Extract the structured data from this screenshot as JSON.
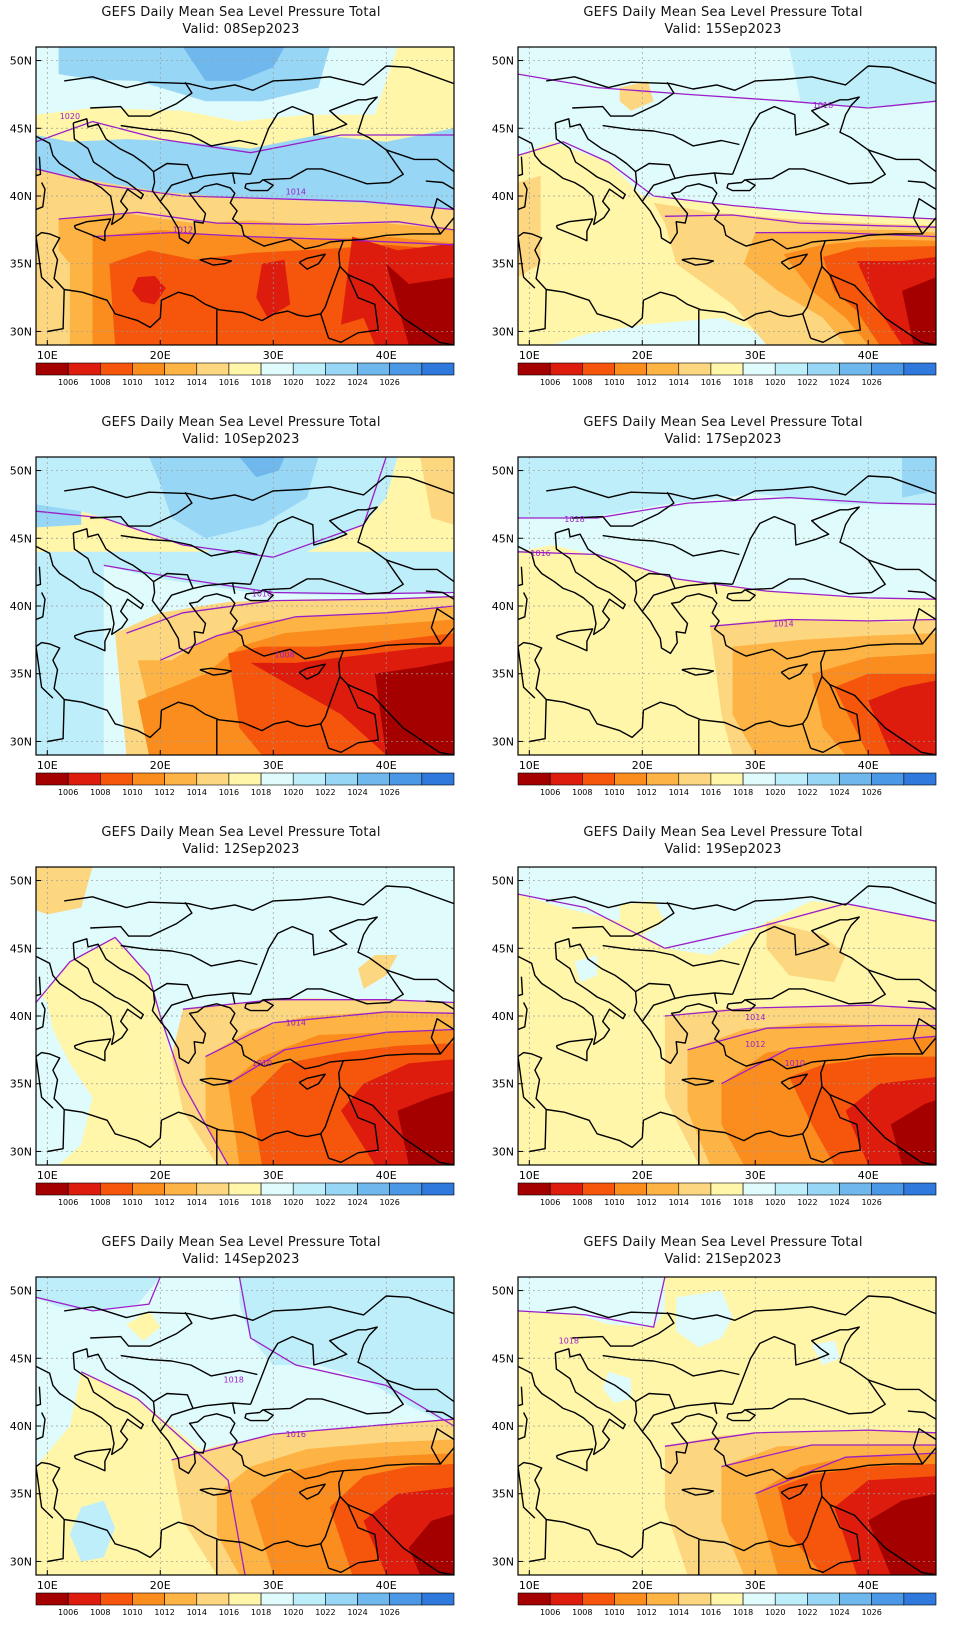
{
  "panel_title": "GEFS Daily Mean Sea Level Pressure Total",
  "valid_prefix": "Valid: ",
  "lat_labels": [
    "50N",
    "45N",
    "40N",
    "35N",
    "30N"
  ],
  "lon_labels": [
    "10E",
    "20E",
    "30E",
    "40E"
  ],
  "colorbar": {
    "labels": [
      "1006",
      "1008",
      "1010",
      "1012",
      "1014",
      "1016",
      "1018",
      "1020",
      "1022",
      "1024",
      "1026"
    ],
    "colors": [
      "#a50000",
      "#dd1c0e",
      "#f5560b",
      "#fb8c1e",
      "#fdb445",
      "#fdd680",
      "#fff6aa",
      "#e0fbfb",
      "#bfeefb",
      "#98d6f6",
      "#6fb8ee",
      "#4a98e6",
      "#2f78dc"
    ]
  },
  "panels": [
    {
      "id": "p1",
      "valid": "08Sep2023",
      "base": "#98d6f6",
      "labels": [
        {
          "text": "1020",
          "lon": 12,
          "lat": 45.7
        },
        {
          "text": "1014",
          "lon": 32,
          "lat": 40.1
        },
        {
          "text": "1012",
          "lon": 22,
          "lat": 37.3
        }
      ]
    },
    {
      "id": "p2",
      "valid": "15Sep2023",
      "base": "#e0fbfb",
      "labels": [
        {
          "text": "1018",
          "lon": 36,
          "lat": 46.5
        }
      ]
    },
    {
      "id": "p3",
      "valid": "10Sep2023",
      "base": "#bfeefb",
      "labels": [
        {
          "text": "1016",
          "lon": 29,
          "lat": 40.7
        },
        {
          "text": "1008",
          "lon": 31,
          "lat": 36.2
        }
      ]
    },
    {
      "id": "p4",
      "valid": "17Sep2023",
      "base": "#e0fbfb",
      "labels": [
        {
          "text": "1018",
          "lon": 14,
          "lat": 46.2
        },
        {
          "text": "1016",
          "lon": 11,
          "lat": 43.7
        },
        {
          "text": "1014",
          "lon": 32.5,
          "lat": 38.5
        }
      ]
    },
    {
      "id": "p5",
      "valid": "12Sep2023",
      "base": "#e0fbfb",
      "labels": [
        {
          "text": "1014",
          "lon": 32,
          "lat": 39.3
        },
        {
          "text": "1010",
          "lon": 29,
          "lat": 36.3
        }
      ]
    },
    {
      "id": "p6",
      "valid": "19Sep2023",
      "base": "#fff6aa",
      "labels": [
        {
          "text": "1014",
          "lon": 30,
          "lat": 39.7
        },
        {
          "text": "1012",
          "lon": 30,
          "lat": 37.7
        },
        {
          "text": "1010",
          "lon": 33.5,
          "lat": 36.3
        }
      ]
    },
    {
      "id": "p7",
      "valid": "14Sep2023",
      "base": "#e0fbfb",
      "labels": [
        {
          "text": "1018",
          "lon": 26.5,
          "lat": 43.2
        },
        {
          "text": "1016",
          "lon": 32,
          "lat": 39.2
        }
      ]
    },
    {
      "id": "p8",
      "valid": "21Sep2023",
      "base": "#fff6aa",
      "labels": [
        {
          "text": "1018",
          "lon": 13.5,
          "lat": 46.1
        }
      ]
    }
  ]
}
